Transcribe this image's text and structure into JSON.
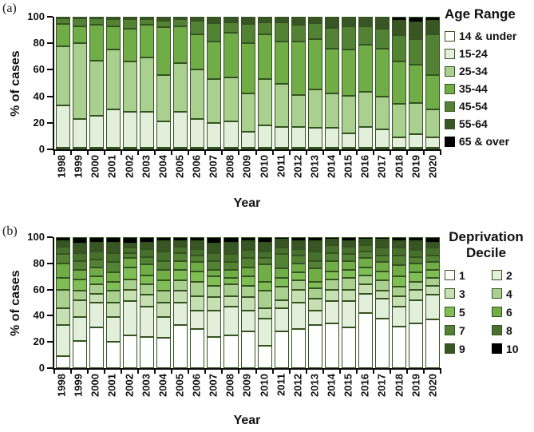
{
  "figure": {
    "background": "#ffffff",
    "axis_color": "#0d0d0d",
    "segment_border_color": "#355320"
  },
  "chart_data": [
    {
      "id": "a",
      "type": "bar",
      "subtype": "stacked-100",
      "panel_label": "(a)",
      "xlabel": "Year",
      "ylabel": "% of cases",
      "ylim": [
        0,
        100
      ],
      "yticks": [
        0,
        20,
        40,
        60,
        80,
        100
      ],
      "legend_title": "Age Range",
      "legend_position": "right",
      "legend_columns": 1,
      "grid": false,
      "categories": [
        "1998",
        "1999",
        "2000",
        "2001",
        "2002",
        "2003",
        "2004",
        "2005",
        "2006",
        "2007",
        "2008",
        "2009",
        "2010",
        "2011",
        "2012",
        "2013",
        "2014",
        "2015",
        "2016",
        "2017",
        "2018",
        "2019",
        "2020"
      ],
      "series": [
        {
          "name": "14 & under",
          "color": "#FFFFFF",
          "values": [
            1,
            1,
            1,
            1,
            1,
            1,
            1,
            1,
            1,
            1,
            1,
            1,
            1,
            1,
            1,
            1,
            1,
            1,
            1,
            1,
            1,
            1,
            1
          ]
        },
        {
          "name": "15-24",
          "color": "#E2EFDA",
          "values": [
            32,
            22,
            24,
            29,
            27,
            27,
            20,
            27,
            22,
            19,
            20,
            12,
            17,
            16,
            16,
            15,
            15,
            11,
            16,
            14,
            8,
            10,
            8
          ]
        },
        {
          "name": "25-34",
          "color": "#A9D08E",
          "values": [
            45,
            57,
            42,
            45,
            38,
            41,
            35,
            37,
            37,
            33,
            33,
            29,
            35,
            32,
            24,
            29,
            26,
            28,
            26,
            25,
            25,
            24,
            21
          ]
        },
        {
          "name": "35-44",
          "color": "#70AD47",
          "values": [
            17,
            13,
            27,
            18,
            25,
            25,
            36,
            28,
            27,
            28,
            34,
            38,
            34,
            32,
            40,
            38,
            34,
            35,
            36,
            36,
            32,
            29,
            26
          ]
        },
        {
          "name": "45-54",
          "color": "#548235",
          "values": [
            4,
            6,
            5,
            5,
            7,
            4,
            5,
            5,
            10,
            14,
            8,
            15,
            9,
            15,
            13,
            12,
            16,
            18,
            14,
            15,
            20,
            19,
            31
          ]
        },
        {
          "name": "55-64",
          "color": "#375623",
          "values": [
            1,
            1,
            1,
            2,
            2,
            2,
            3,
            2,
            3,
            5,
            4,
            4,
            4,
            4,
            6,
            5,
            7,
            7,
            7,
            8,
            11,
            13,
            10
          ]
        },
        {
          "name": "65 & over",
          "color": "#000000",
          "values": [
            0,
            0,
            0,
            0,
            0,
            0,
            0,
            0,
            0,
            0,
            0,
            1,
            0,
            0,
            0,
            0,
            1,
            0,
            0,
            1,
            3,
            4,
            3
          ]
        }
      ]
    },
    {
      "id": "b",
      "type": "bar",
      "subtype": "stacked-100",
      "panel_label": "(b)",
      "xlabel": "Year",
      "ylabel": "% of cases",
      "ylim": [
        0,
        100
      ],
      "yticks": [
        0,
        20,
        40,
        60,
        80,
        100
      ],
      "legend_title": "Deprivation Decile",
      "legend_position": "right",
      "legend_columns": 2,
      "grid": false,
      "categories": [
        "1998",
        "1999",
        "2000",
        "2001",
        "2002",
        "2003",
        "2004",
        "2005",
        "2006",
        "2007",
        "2008",
        "2009",
        "2010",
        "2011",
        "2012",
        "2013",
        "2014",
        "2015",
        "2016",
        "2017",
        "2018",
        "2019",
        "2020"
      ],
      "series": [
        {
          "name": "1",
          "color": "#FFFFFF",
          "values": [
            9,
            21,
            31,
            20,
            25,
            24,
            23,
            33,
            30,
            24,
            25,
            28,
            17,
            28,
            30,
            33,
            34,
            31,
            42,
            38,
            32,
            34,
            37
          ]
        },
        {
          "name": "2",
          "color": "#E2EFDA",
          "values": [
            24,
            18,
            19,
            19,
            26,
            23,
            16,
            17,
            14,
            20,
            22,
            16,
            21,
            18,
            20,
            11,
            17,
            20,
            15,
            15,
            15,
            18,
            19
          ]
        },
        {
          "name": "3",
          "color": "#C6E0B4",
          "values": [
            13,
            13,
            7,
            11,
            9,
            9,
            11,
            9,
            11,
            10,
            8,
            10,
            8,
            6,
            10,
            9,
            9,
            9,
            7,
            6,
            8,
            8,
            7
          ]
        },
        {
          "name": "4",
          "color": "#A9D08E",
          "values": [
            14,
            7,
            7,
            9,
            8,
            8,
            9,
            8,
            11,
            9,
            9,
            9,
            13,
            10,
            7,
            8,
            8,
            9,
            7,
            8,
            7,
            6,
            6
          ]
        },
        {
          "name": "5",
          "color": "#7FBE55",
          "values": [
            9,
            9,
            6,
            7,
            9,
            7,
            8,
            8,
            8,
            7,
            5,
            7,
            7,
            7,
            6,
            5,
            6,
            6,
            6,
            7,
            8,
            7,
            6
          ]
        },
        {
          "name": "6",
          "color": "#70AD47",
          "values": [
            11,
            7,
            7,
            7,
            7,
            8,
            8,
            7,
            7,
            5,
            6,
            7,
            13,
            7,
            7,
            10,
            8,
            7,
            7,
            7,
            9,
            7,
            6
          ]
        },
        {
          "name": "7",
          "color": "#548235",
          "values": [
            7,
            7,
            6,
            8,
            4,
            6,
            7,
            6,
            5,
            7,
            6,
            7,
            5,
            11,
            6,
            6,
            6,
            5,
            5,
            5,
            7,
            5,
            5
          ]
        },
        {
          "name": "8",
          "color": "#47702C",
          "values": [
            6,
            6,
            6,
            7,
            4,
            6,
            7,
            5,
            5,
            6,
            6,
            6,
            5,
            5,
            5,
            7,
            6,
            6,
            5,
            6,
            6,
            5,
            6
          ]
        },
        {
          "name": "9",
          "color": "#375623",
          "values": [
            4,
            7,
            7,
            8,
            3,
            5,
            8,
            4,
            6,
            7,
            9,
            7,
            7,
            6,
            6,
            8,
            4,
            4,
            4,
            6,
            5,
            7,
            4
          ]
        },
        {
          "name": "10",
          "color": "#000000",
          "values": [
            3,
            5,
            4,
            4,
            5,
            4,
            3,
            3,
            3,
            5,
            4,
            3,
            4,
            2,
            3,
            3,
            2,
            3,
            2,
            2,
            3,
            3,
            4
          ]
        }
      ]
    }
  ]
}
